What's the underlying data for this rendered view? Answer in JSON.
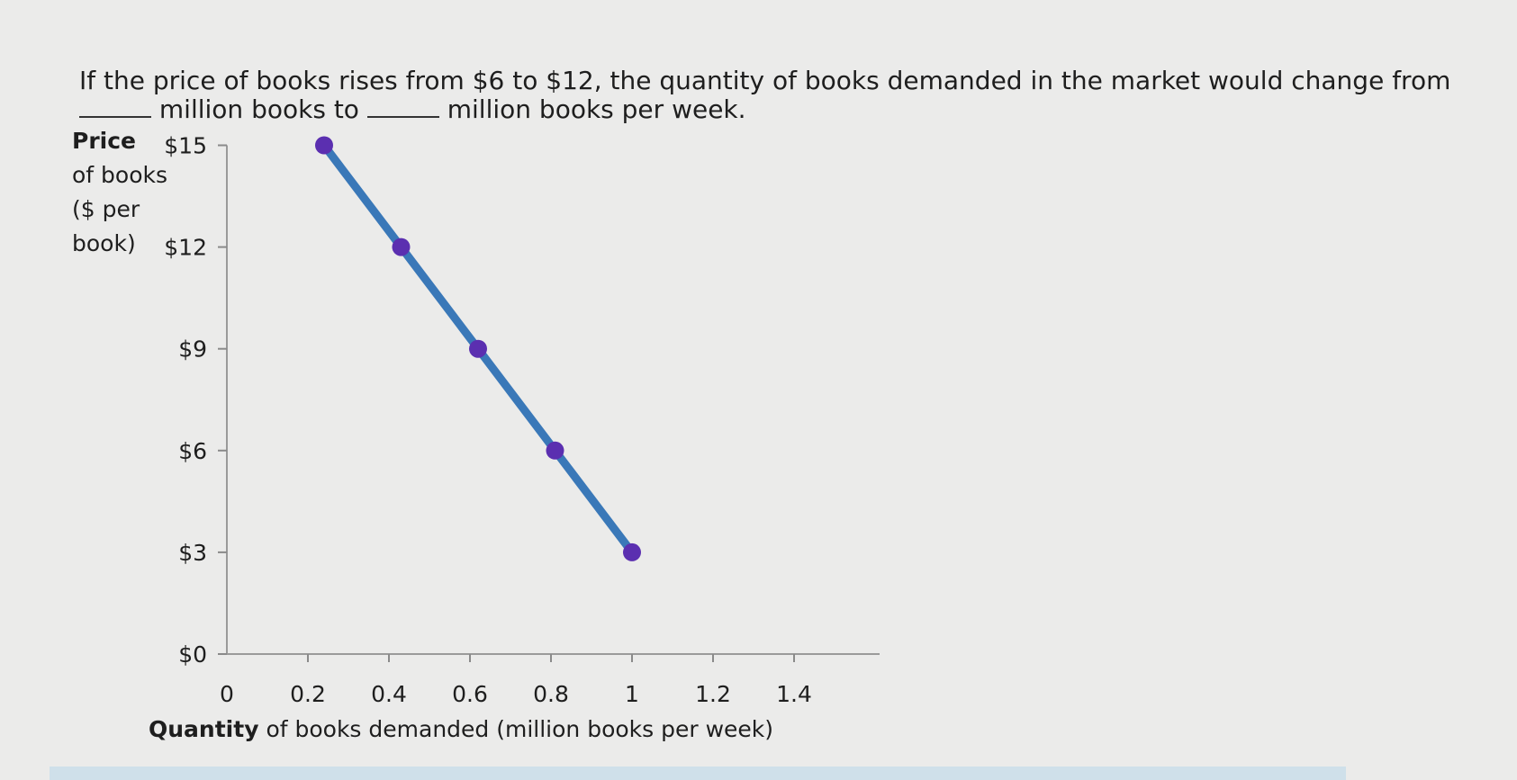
{
  "question": {
    "part1": "If the price of books rises from $6 to $12, the quantity of books demanded in the market would change from",
    "part2": "million books to",
    "part3": "million books per week."
  },
  "chart_data": {
    "type": "line",
    "ylabel_lines": [
      "Price",
      "of books",
      "($ per",
      "book)"
    ],
    "xlabel_bold": "Quantity",
    "xlabel_rest": " of books demanded (million books per week)",
    "x_ticks": [
      0,
      0.2,
      0.4,
      0.6,
      0.8,
      1,
      1.2,
      1.4
    ],
    "x_tick_labels": [
      "0",
      "0.2",
      "0.4",
      "0.6",
      "0.8",
      "1",
      "1.2",
      "1.4"
    ],
    "y_ticks": [
      0,
      3,
      6,
      9,
      12,
      15
    ],
    "y_tick_labels": [
      "$0",
      "$3",
      "$6",
      "$9",
      "$12",
      "$15"
    ],
    "xlim": [
      0,
      1.5
    ],
    "ylim": [
      0,
      15
    ],
    "series": [
      {
        "x": [
          0.24,
          0.43,
          0.62,
          0.81,
          1.0
        ],
        "y": [
          15,
          12,
          9,
          6,
          3
        ],
        "line_color": "#3a78b8",
        "marker_color": "#5b2fb0"
      }
    ]
  }
}
